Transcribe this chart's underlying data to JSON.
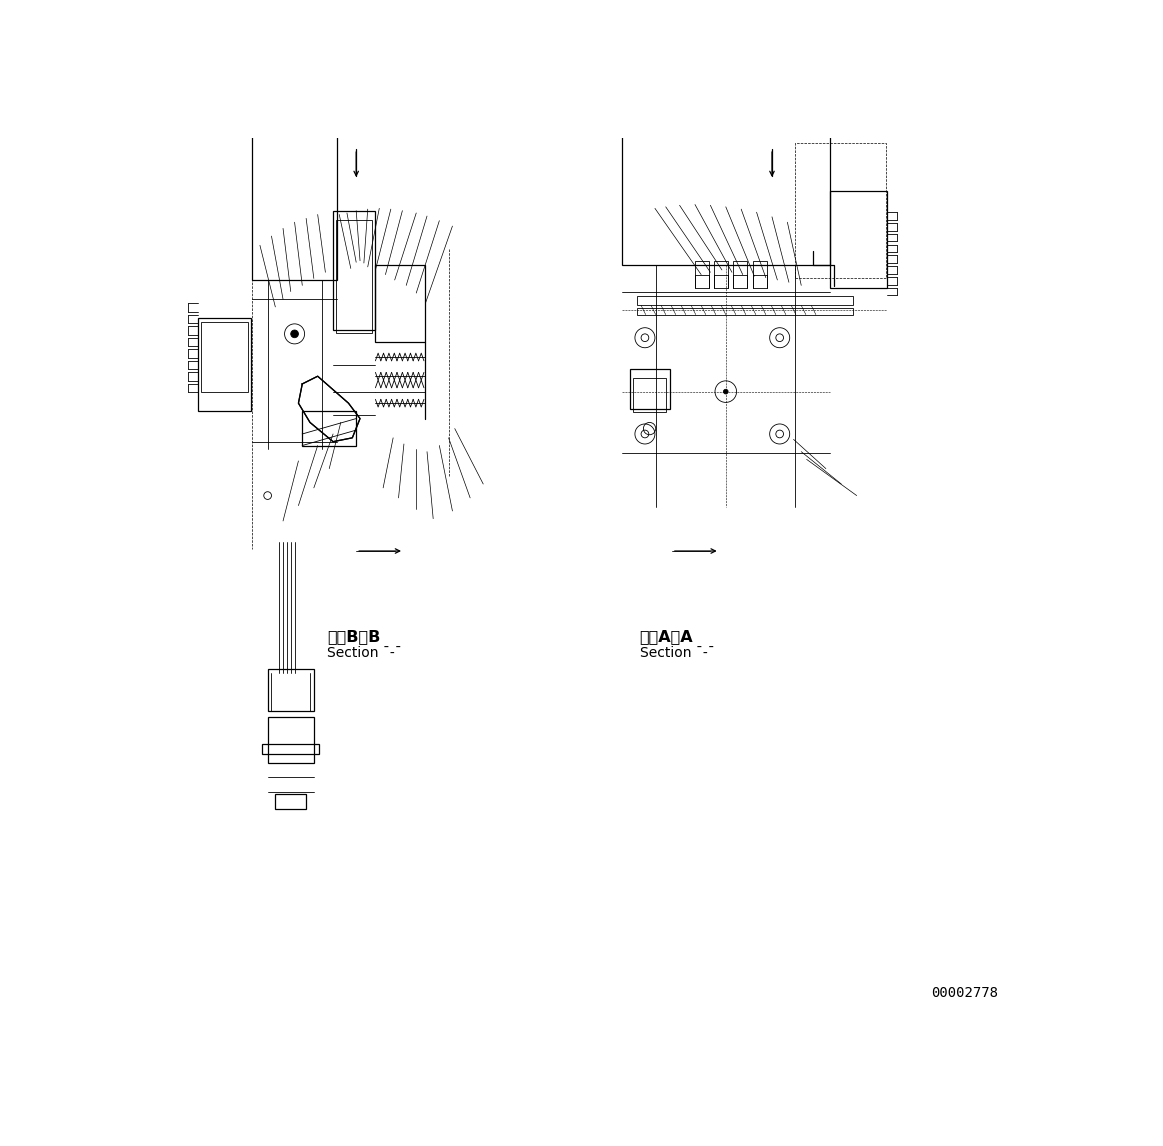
{
  "bg_color": "#ffffff",
  "line_color": "#000000",
  "fig_width": 11.63,
  "fig_height": 11.46,
  "dpi": 100,
  "watermark": "00002778",
  "label_bb_line1": "断面B－B",
  "label_bb_line2": "Section ¯-¯",
  "label_aa_line1": "断面A－A",
  "label_aa_line2": "Section ¯-¯"
}
